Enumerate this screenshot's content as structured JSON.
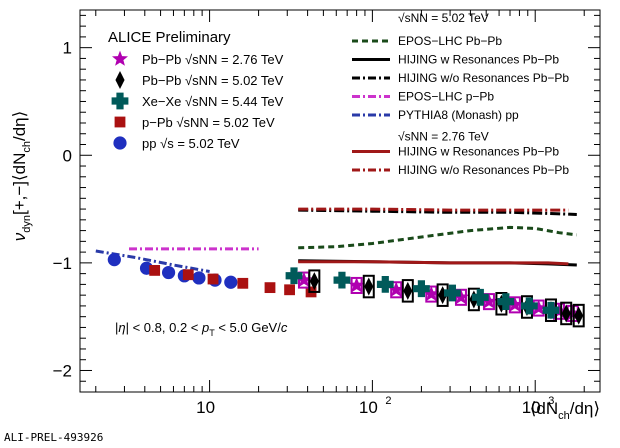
{
  "chart_data": {
    "type": "scatter",
    "title": "ALICE Preliminary",
    "footer_id": "ALI-PREL-493926",
    "ylabel": {
      "main": "ν",
      "sub": "dyn",
      "rest": "[+,−]⟨dN",
      "sub2": "ch",
      "tail": "/dη⟩"
    },
    "xlabel": {
      "pre": "⟨dN",
      "sub": "ch",
      "post": "/dη⟩"
    },
    "x_scale": "log",
    "xlim": [
      1.6,
      2500
    ],
    "ylim": [
      -2.2,
      1.35
    ],
    "x_tick_labels": [
      "10",
      "10",
      "10"
    ],
    "x_tick_exponents": [
      "",
      "2",
      "3"
    ],
    "y_tick_labels": [
      "1",
      "0",
      "−1",
      "−2"
    ],
    "y_ticks": [
      1,
      0,
      -1,
      -2
    ],
    "annotation": "|η| < 0.8, 0.2 < p_T < 5.0 GeV/c",
    "legend_data": [
      {
        "marker": "star",
        "color": "#b000b0",
        "label": "Pb−Pb √sNN = 2.76 TeV"
      },
      {
        "marker": "diamond",
        "color": "#000000",
        "label": "Pb−Pb √sNN = 5.02 TeV"
      },
      {
        "marker": "cross",
        "color": "#005a5a",
        "label": "Xe−Xe √sNN = 5.44 TeV"
      },
      {
        "marker": "square",
        "color": "#aa1111",
        "label": "p−Pb √sNN = 5.02 TeV"
      },
      {
        "marker": "circle",
        "color": "#1f2fbf",
        "label": "pp √s = 5.02 TeV"
      }
    ],
    "legend_models_header_1": "√sNN = 5.02 TeV",
    "legend_models_header_2": "√sNN = 2.76 TeV",
    "legend_models": [
      {
        "style": "dash",
        "color": "#1a4a1a",
        "label": "EPOS−LHC Pb−Pb"
      },
      {
        "style": "solid",
        "color": "#000000",
        "label": "HIJING w Resonances Pb−Pb"
      },
      {
        "style": "dashdot",
        "color": "#000000",
        "label": "HIJING w/o Resonances Pb−Pb"
      },
      {
        "style": "dashdot",
        "color": "#cc33cc",
        "label": "EPOS−LHC p−Pb"
      },
      {
        "style": "dashdot",
        "color": "#2a3aa8",
        "label": "PYTHIA8 (Monash) pp"
      },
      {
        "style": "solid",
        "color": "#a01818",
        "label": "HIJING w Resonances Pb−Pb"
      },
      {
        "style": "dashdot",
        "color": "#a01818",
        "label": "HIJING w/o Resonances Pb−Pb"
      }
    ],
    "series": [
      {
        "name": "pp √s = 5.02 TeV",
        "marker": "circle",
        "color": "#1f2fbf",
        "x": [
          2.6,
          4.1,
          5.6,
          7.0,
          8.6,
          10.8,
          13.5
        ],
        "y": [
          -0.97,
          -1.05,
          -1.09,
          -1.12,
          -1.14,
          -1.16,
          -1.18
        ]
      },
      {
        "name": "p−Pb √sNN = 5.02 TeV",
        "marker": "square",
        "color": "#aa1111",
        "x": [
          4.6,
          7.4,
          10.5,
          16.0,
          23.5,
          31.0,
          42.0
        ],
        "y": [
          -1.07,
          -1.11,
          -1.15,
          -1.19,
          -1.23,
          -1.25,
          -1.27
        ]
      },
      {
        "name": "Pb−Pb √sNN = 2.76 TeV",
        "marker": "star",
        "color": "#b000b0",
        "x": [
          38,
          80,
          140,
          230,
          350,
          520,
          750,
          1050,
          1400,
          1700
        ],
        "y": [
          -1.16,
          -1.21,
          -1.25,
          -1.29,
          -1.32,
          -1.36,
          -1.39,
          -1.42,
          -1.45,
          -1.47
        ],
        "sys_height": 0.14
      },
      {
        "name": "Pb−Pb √sNN = 5.02 TeV",
        "marker": "diamond",
        "color": "#000000",
        "x": [
          44,
          95,
          165,
          270,
          420,
          620,
          890,
          1250,
          1550,
          1850
        ],
        "y": [
          -1.17,
          -1.22,
          -1.26,
          -1.3,
          -1.34,
          -1.38,
          -1.41,
          -1.44,
          -1.47,
          -1.49
        ],
        "sys_height": 0.2
      },
      {
        "name": "Xe−Xe √sNN = 5.44 TeV",
        "marker": "cross",
        "color": "#005a5a",
        "x": [
          33,
          65,
          120,
          200,
          310,
          460,
          660,
          920,
          1250
        ],
        "y": [
          -1.12,
          -1.16,
          -1.2,
          -1.24,
          -1.28,
          -1.32,
          -1.36,
          -1.4,
          -1.44
        ]
      }
    ],
    "model_curves": [
      {
        "name": "EPOS−LHC Pb−Pb",
        "color": "#1a4a1a",
        "dash": "6,4",
        "x": [
          35,
          60,
          100,
          200,
          400,
          700,
          1000,
          1400,
          1800
        ],
        "y": [
          -0.86,
          -0.85,
          -0.82,
          -0.76,
          -0.7,
          -0.67,
          -0.68,
          -0.72,
          -0.74
        ]
      },
      {
        "name": "HIJING w Resonances Pb−Pb 5.02",
        "color": "#000000",
        "dash": "",
        "x": [
          35,
          100,
          300,
          700,
          1200,
          1800
        ],
        "y": [
          -0.98,
          -0.99,
          -1.0,
          -1.0,
          -1.01,
          -1.02
        ]
      },
      {
        "name": "HIJING w/o Resonances Pb−Pb 5.02",
        "color": "#000000",
        "dash": "10,3,2,3",
        "x": [
          35,
          100,
          300,
          700,
          1200,
          1800
        ],
        "y": [
          -0.51,
          -0.52,
          -0.53,
          -0.53,
          -0.54,
          -0.55
        ]
      },
      {
        "name": "EPOS−LHC p−Pb",
        "color": "#cc33cc",
        "dash": "8,3,2,3",
        "x": [
          3.2,
          5,
          8,
          12,
          16,
          20
        ],
        "y": [
          -0.87,
          -0.87,
          -0.87,
          -0.87,
          -0.87,
          -0.87
        ]
      },
      {
        "name": "PYTHIA8 (Monash) pp",
        "color": "#2a3aa8",
        "dash": "8,3,2,3",
        "x": [
          2.0,
          3.5,
          6,
          10
        ],
        "y": [
          -0.89,
          -0.95,
          -1.02,
          -1.08
        ]
      },
      {
        "name": "HIJING w Resonances Pb−Pb 2.76",
        "color": "#a01818",
        "dash": "",
        "x": [
          35,
          100,
          300,
          700,
          1200,
          1600
        ],
        "y": [
          -0.99,
          -0.99,
          -1.0,
          -1.0,
          -1.0,
          -1.01
        ]
      },
      {
        "name": "HIJING w/o Resonances Pb−Pb 2.76",
        "color": "#a01818",
        "dash": "10,3,2,3",
        "x": [
          35,
          100,
          300,
          700,
          1200,
          1600
        ],
        "y": [
          -0.5,
          -0.5,
          -0.51,
          -0.51,
          -0.51,
          -0.51
        ]
      }
    ]
  }
}
